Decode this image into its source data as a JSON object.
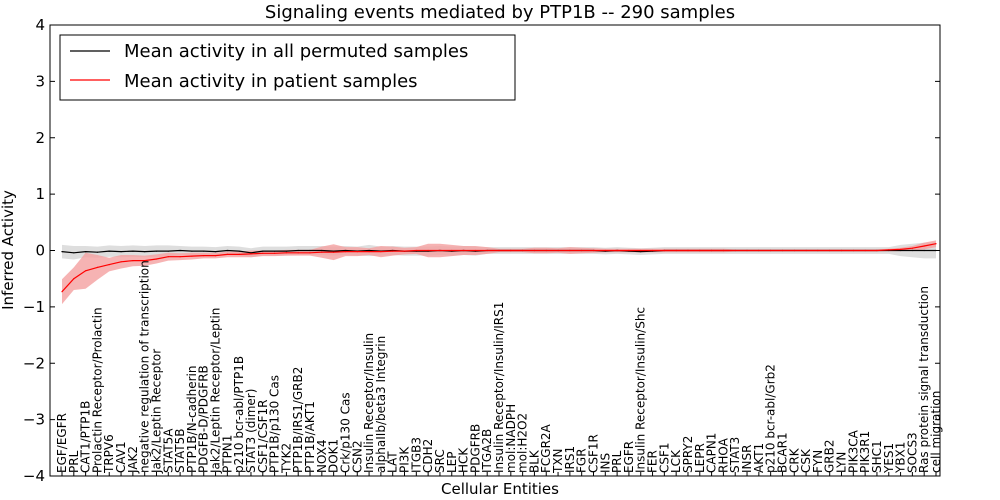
{
  "chart_data": {
    "type": "line",
    "title": "Signaling events mediated by PTP1B -- 290 samples",
    "xlabel": "Cellular Entities",
    "ylabel": "Inferred Activity",
    "ylim": [
      -4,
      4
    ],
    "yticks": [
      -4,
      -3,
      -2,
      -1,
      0,
      1,
      2,
      3,
      4
    ],
    "ytick_labels": [
      "−4",
      "−3",
      "−2",
      "−1",
      "0",
      "1",
      "2",
      "3",
      "4"
    ],
    "legend_position": "top-left",
    "categories": [
      "EGF/EGFR",
      "PRL",
      "CAT1/PTP1B",
      "Prolactin Receptor/Prolactin",
      "TRPV6",
      "CAV1",
      "JAK2",
      "negative regulation of transcription",
      "Jak2/Leptin Receptor",
      "STAT5A",
      "STAT5B",
      "PTP1B/N-cadherin",
      "PDGFB-D/PDGFRB",
      "Jak2/Leptin Receptor/Leptin",
      "PTPN1",
      "p210 bcr-abl/PTP1B",
      "STAT3 (dimer)",
      "CSF1/CSF1R",
      "PTP1B/p130 Cas",
      "TYK2",
      "PTP1B/IRS1/GRB2",
      "PTP1B/AKT1",
      "NOX4",
      "DOK1",
      "Crk/p130 Cas",
      "CSN2",
      "Insulin Receptor/Insulin",
      "alphaIIb/beta3 Integrin",
      "LAT",
      "PI3K",
      "ITGB3",
      "CDH2",
      "SRC",
      "LEP",
      "HCK",
      "PDGFRB",
      "ITGA2B",
      "Insulin Receptor/Insulin/IRS1",
      "mol:NADPH",
      "mol:H2O2",
      "BLK",
      "FCGR2A",
      "TXN",
      "IRS1",
      "FGR",
      "CSF1R",
      "INS",
      "PRL",
      "EGFR",
      "Insulin Receptor/Insulin/Shc",
      "FER",
      "CSF1",
      "LCK",
      "SPRY2",
      "LEPR",
      "CAPN1",
      "RHOA",
      "STAT3",
      "INSR",
      "AKT1",
      "p210 bcr-abl/Grb2",
      "BCAR1",
      "CRK",
      "CSK",
      "FYN",
      "GRB2",
      "LYN",
      "PIK3CA",
      "PIK3R1",
      "SHC1",
      "YES1",
      "YBX1",
      "SOCS3",
      "Ras protein signal transduction",
      "cell migration"
    ],
    "series": [
      {
        "name": "Mean activity in all permuted samples",
        "color": "#000000",
        "band_color": "#c8c8c8",
        "values": [
          -0.02,
          -0.04,
          -0.02,
          -0.03,
          -0.01,
          -0.02,
          -0.01,
          -0.02,
          -0.01,
          -0.01,
          0.0,
          -0.01,
          -0.01,
          -0.02,
          0.0,
          -0.01,
          -0.04,
          -0.01,
          -0.01,
          -0.01,
          0.0,
          0.0,
          0.0,
          -0.01,
          0.0,
          -0.01,
          0.0,
          -0.01,
          0.0,
          -0.01,
          -0.01,
          -0.01,
          0.0,
          -0.01,
          0.0,
          -0.01,
          0.0,
          0.0,
          0.0,
          0.0,
          0.0,
          0.0,
          0.0,
          0.0,
          0.0,
          0.0,
          -0.01,
          0.0,
          -0.01,
          -0.02,
          -0.01,
          0.0,
          0.0,
          0.0,
          0.0,
          0.0,
          0.0,
          0.0,
          0.0,
          0.0,
          0.0,
          0.0,
          0.0,
          0.0,
          0.0,
          0.0,
          0.0,
          0.0,
          0.0,
          0.0,
          0.0,
          0.0,
          0.0,
          0.0,
          0.0
        ],
        "band": [
          0.12,
          0.12,
          0.1,
          0.1,
          0.1,
          0.1,
          0.1,
          0.1,
          0.1,
          0.1,
          0.08,
          0.08,
          0.08,
          0.08,
          0.08,
          0.08,
          0.08,
          0.08,
          0.08,
          0.08,
          0.08,
          0.08,
          0.08,
          0.08,
          0.08,
          0.08,
          0.1,
          0.08,
          0.08,
          0.08,
          0.08,
          0.08,
          0.08,
          0.08,
          0.08,
          0.08,
          0.06,
          0.06,
          0.06,
          0.06,
          0.06,
          0.06,
          0.06,
          0.06,
          0.06,
          0.06,
          0.06,
          0.06,
          0.06,
          0.06,
          0.06,
          0.06,
          0.06,
          0.06,
          0.06,
          0.06,
          0.06,
          0.06,
          0.06,
          0.06,
          0.06,
          0.06,
          0.06,
          0.06,
          0.06,
          0.06,
          0.06,
          0.06,
          0.06,
          0.06,
          0.06,
          0.1,
          0.12,
          0.14,
          0.14
        ]
      },
      {
        "name": "Mean activity in patient samples",
        "color": "#ff0000",
        "band_color": "#f4a0a0",
        "values": [
          -0.73,
          -0.5,
          -0.36,
          -0.3,
          -0.25,
          -0.2,
          -0.18,
          -0.18,
          -0.15,
          -0.11,
          -0.11,
          -0.1,
          -0.09,
          -0.09,
          -0.07,
          -0.07,
          -0.06,
          -0.05,
          -0.05,
          -0.04,
          -0.04,
          -0.04,
          -0.03,
          -0.03,
          -0.02,
          -0.02,
          -0.02,
          -0.02,
          -0.01,
          -0.01,
          0.0,
          0.0,
          0.0,
          0.0,
          0.0,
          0.0,
          0.0,
          0.0,
          0.0,
          0.0,
          0.0,
          0.0,
          0.0,
          0.0,
          0.0,
          0.0,
          0.0,
          0.0,
          0.0,
          0.0,
          0.0,
          0.0,
          0.0,
          0.0,
          0.0,
          0.0,
          0.0,
          0.0,
          0.0,
          0.0,
          0.0,
          0.0,
          0.0,
          0.0,
          0.0,
          0.0,
          0.0,
          0.0,
          0.0,
          0.0,
          0.01,
          0.02,
          0.04,
          0.08,
          0.12
        ],
        "band": [
          0.22,
          0.2,
          0.32,
          0.22,
          0.12,
          0.12,
          0.1,
          0.09,
          0.08,
          0.07,
          0.06,
          0.06,
          0.05,
          0.05,
          0.05,
          0.05,
          0.06,
          0.05,
          0.05,
          0.05,
          0.05,
          0.05,
          0.1,
          0.14,
          0.08,
          0.08,
          0.06,
          0.1,
          0.08,
          0.06,
          0.06,
          0.12,
          0.12,
          0.1,
          0.08,
          0.08,
          0.06,
          0.03,
          0.03,
          0.03,
          0.05,
          0.05,
          0.04,
          0.06,
          0.05,
          0.04,
          0.03,
          0.03,
          0.03,
          0.03,
          0.03,
          0.03,
          0.03,
          0.03,
          0.03,
          0.03,
          0.03,
          0.02,
          0.02,
          0.02,
          0.02,
          0.02,
          0.02,
          0.02,
          0.02,
          0.02,
          0.02,
          0.02,
          0.02,
          0.02,
          0.02,
          0.03,
          0.04,
          0.06,
          0.06
        ]
      }
    ]
  }
}
